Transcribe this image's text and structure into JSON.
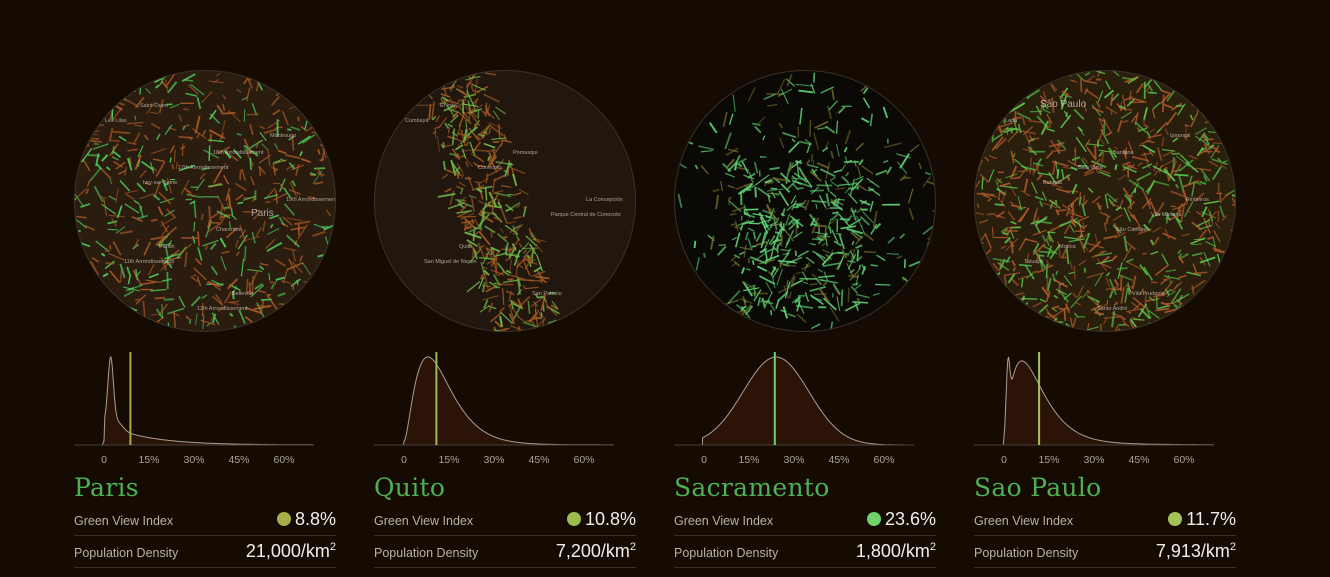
{
  "labels": {
    "gvi": "Green View Index",
    "pop": "Population Density"
  },
  "axis_ticks": [
    "0",
    "15%",
    "30%",
    "45%",
    "60%"
  ],
  "unit": {
    "base": "/km",
    "exp": "2"
  },
  "cities": [
    {
      "name": "Paris",
      "gvi": "8.8%",
      "gvi_value": 8.8,
      "dot_color": "#a7ad48",
      "pop": "21,000",
      "hist_shape": "sharp-left",
      "map": {
        "tint": "#2a1d10",
        "green": "#4fd45d",
        "orange": "#b05a25",
        "density": 0.55,
        "labels": [
          "Saint-Ouen",
          "18th Arrondissement",
          "19th Arrondissement",
          "Pantin",
          "Belleville",
          "Les Lilas",
          "17th Arrondissement",
          "Paris",
          "11th Arrondissement",
          "12th Arrondissement",
          "Montrouge",
          "Ivry-sur-Seine",
          "Charenton"
        ]
      }
    },
    {
      "name": "Quito",
      "gvi": "10.8%",
      "gvi_value": 10.8,
      "dot_color": "#9cbb4d",
      "pop": "7,200",
      "hist_shape": "left-peak",
      "map": {
        "tint": "#21170e",
        "green": "#6fc24b",
        "orange": "#a35a22",
        "density": 0.25,
        "labels": [
          "El Inca",
          "Pomasqui",
          "La Concepción",
          "Quito",
          "San Patricio",
          "Cumbayá",
          "Conocoto",
          "Parque Central de Conocoto",
          "San Miguel de Nayón"
        ]
      }
    },
    {
      "name": "Sacramento",
      "gvi": "23.6%",
      "gvi_value": 23.6,
      "dot_color": "#6fd36a",
      "pop": "1,800",
      "hist_shape": "bell",
      "map": {
        "tint": "#0b0905",
        "green": "#5fd779",
        "orange": "#6b6a2a",
        "density": 0.45,
        "labels": []
      }
    },
    {
      "name": "Sao Paulo",
      "gvi": "11.7%",
      "gvi_value": 11.7,
      "dot_color": "#a3c25a",
      "pop": "7,913",
      "hist_shape": "double-left",
      "map": {
        "tint": "#2a1e0d",
        "green": "#59c94c",
        "orange": "#b0592a",
        "density": 0.95,
        "labels": [
          "São Paulo",
          "Santana",
          "Pinheiros",
          "Mooca",
          "Vila Prudente",
          "Lapa",
          "Bela Vista",
          "Vila Mariana",
          "Tatuapé",
          "Santo André",
          "Ipiranga",
          "Butantã",
          "São Caetano"
        ]
      }
    }
  ]
}
